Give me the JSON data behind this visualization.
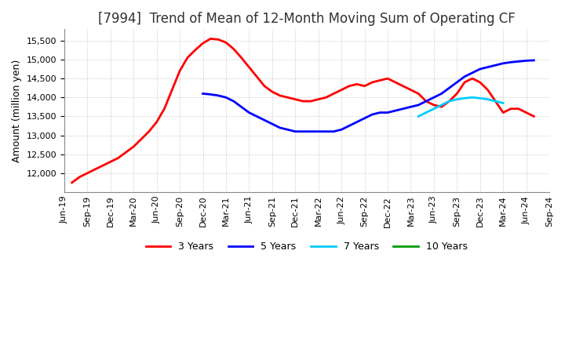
{
  "title": "[7994]  Trend of Mean of 12-Month Moving Sum of Operating CF",
  "ylabel": "Amount (million yen)",
  "ylim": [
    11500,
    15800
  ],
  "yticks": [
    12000,
    12500,
    13000,
    13500,
    14000,
    14500,
    15000,
    15500
  ],
  "background_color": "#ffffff",
  "grid_color": "#bbbbbb",
  "series": {
    "3 Years": {
      "color": "#ff0000",
      "x": [
        1,
        2,
        3,
        4,
        5,
        6,
        7,
        8,
        9,
        10,
        11,
        12,
        13,
        14,
        15,
        16,
        17,
        18,
        19,
        20,
        21,
        22,
        23,
        24,
        25,
        26,
        27,
        28,
        29,
        30,
        31,
        32,
        33,
        34,
        35,
        36,
        37,
        38,
        39,
        40,
        41,
        42,
        43,
        44,
        45,
        46,
        47,
        48,
        49,
        50,
        51,
        52,
        53,
        54,
        55,
        56,
        57,
        58,
        59,
        60,
        61
      ],
      "y": [
        11750,
        11900,
        12000,
        12100,
        12200,
        12300,
        12400,
        12550,
        12700,
        12900,
        13100,
        13350,
        13700,
        14200,
        14700,
        15050,
        15250,
        15430,
        15550,
        15530,
        15450,
        15280,
        15050,
        14800,
        14550,
        14300,
        14150,
        14050,
        14000,
        13950,
        13900,
        13900,
        13950,
        14000,
        14100,
        14200,
        14300,
        14350,
        14300,
        14400,
        14450,
        14500,
        14400,
        14300,
        14200,
        14100,
        13900,
        13800,
        13750,
        13900,
        14100,
        14400,
        14500,
        14400,
        14200,
        13900,
        13600,
        13700,
        13700,
        13600,
        13500
      ]
    },
    "5 Years": {
      "color": "#0000ff",
      "x": [
        18,
        19,
        20,
        21,
        22,
        23,
        24,
        25,
        26,
        27,
        28,
        29,
        30,
        31,
        32,
        33,
        34,
        35,
        36,
        37,
        38,
        39,
        40,
        41,
        42,
        43,
        44,
        45,
        46,
        47,
        48,
        49,
        50,
        51,
        52,
        53,
        54,
        55,
        56,
        57,
        58,
        59,
        60,
        61
      ],
      "y": [
        14100,
        14080,
        14050,
        14000,
        13900,
        13750,
        13600,
        13500,
        13400,
        13300,
        13200,
        13150,
        13100,
        13100,
        13100,
        13100,
        13100,
        13100,
        13150,
        13250,
        13350,
        13450,
        13550,
        13600,
        13600,
        13650,
        13700,
        13750,
        13800,
        13900,
        14000,
        14100,
        14250,
        14400,
        14550,
        14650,
        14750,
        14800,
        14850,
        14900,
        14930,
        14950,
        14970,
        14980
      ]
    },
    "7 Years": {
      "color": "#00ccff",
      "x": [
        46,
        47,
        48,
        49,
        50,
        51,
        52,
        53,
        54,
        55,
        56,
        57
      ],
      "y": [
        13500,
        13600,
        13700,
        13800,
        13900,
        13950,
        13980,
        14000,
        13980,
        13950,
        13900,
        13850
      ]
    },
    "10 Years": {
      "color": "#009900",
      "x": [],
      "y": []
    }
  },
  "xtick_labels": [
    "Jun-19",
    "Sep-19",
    "Dec-19",
    "Mar-20",
    "Jun-20",
    "Sep-20",
    "Dec-20",
    "Mar-21",
    "Jun-21",
    "Sep-21",
    "Dec-21",
    "Mar-22",
    "Jun-22",
    "Sep-22",
    "Dec-22",
    "Mar-23",
    "Jun-23",
    "Sep-23",
    "Dec-23",
    "Mar-24",
    "Jun-24",
    "Sep-24"
  ],
  "xtick_positions": [
    0,
    3,
    6,
    9,
    12,
    15,
    18,
    21,
    24,
    27,
    30,
    33,
    36,
    39,
    42,
    45,
    48,
    51,
    54,
    57,
    60,
    63
  ],
  "title_fontsize": 12,
  "axis_fontsize": 9,
  "tick_fontsize": 8,
  "legend_fontsize": 9
}
